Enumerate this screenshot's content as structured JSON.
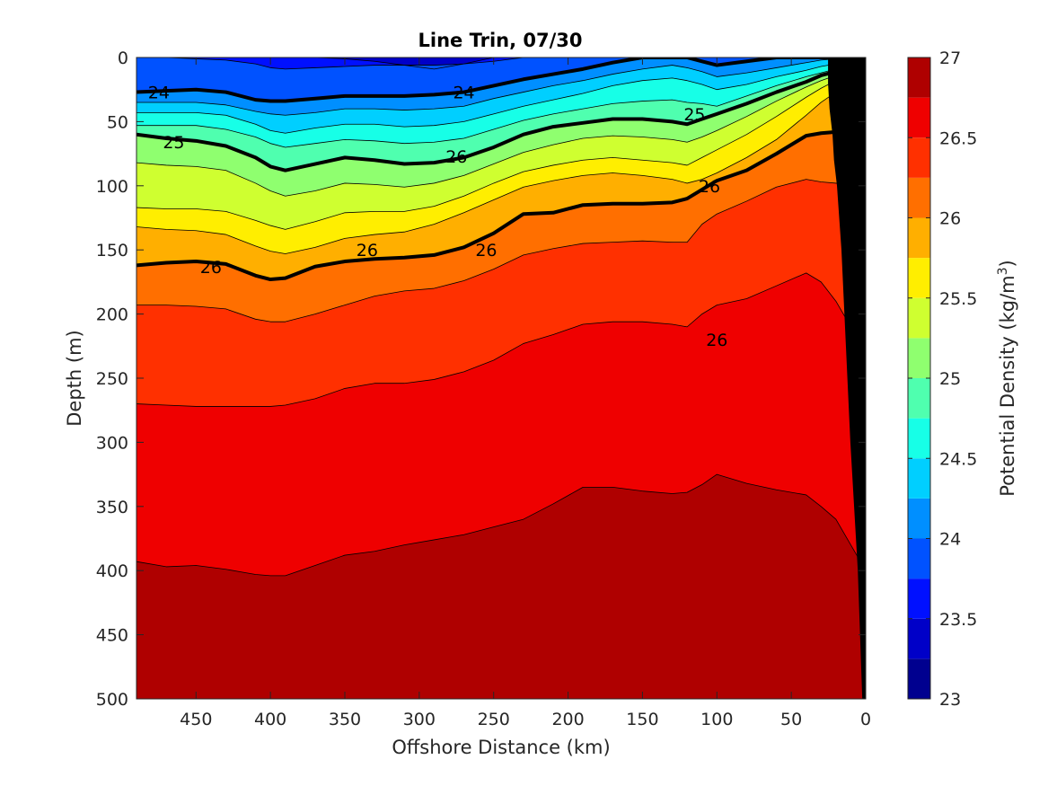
{
  "chart_data": {
    "type": "contourf",
    "title": "Line Trin, 07/30",
    "xlabel": "Offshore Distance (km)",
    "ylabel": "Depth (m)",
    "colorbar_label": "Potential Density (kg/m",
    "colorbar_label_superscript": "3",
    "colorbar_label_close": ")",
    "xlim": [
      490,
      0
    ],
    "ylim": [
      0,
      500
    ],
    "x_reversed": true,
    "y_reversed": true,
    "x_ticks": [
      "450",
      "400",
      "350",
      "300",
      "250",
      "200",
      "150",
      "100",
      "50",
      "0"
    ],
    "y_ticks": [
      "0",
      "50",
      "100",
      "150",
      "200",
      "250",
      "300",
      "350",
      "400",
      "450",
      "500"
    ],
    "colorbar_range": [
      23,
      27
    ],
    "colorbar_ticks": [
      "23",
      "23.5",
      "24",
      "24.5",
      "25",
      "25.5",
      "26",
      "26.5",
      "27"
    ],
    "levels": [
      23,
      23.25,
      23.5,
      23.75,
      24,
      24.25,
      24.5,
      24.75,
      25,
      25.25,
      25.5,
      25.75,
      26,
      26.25,
      26.5,
      26.75,
      27
    ],
    "colors": [
      "#00008f",
      "#0000c8",
      "#0010ff",
      "#0052ff",
      "#008fff",
      "#00cfff",
      "#17ffe7",
      "#4fffaf",
      "#8fff6f",
      "#cfff30",
      "#ffee00",
      "#ffaf00",
      "#ff6f00",
      "#ff3000",
      "#ef0000",
      "#af0000"
    ],
    "highlight_contours": [
      "24",
      "25",
      "26"
    ],
    "x": [
      490,
      470,
      450,
      430,
      410,
      400,
      390,
      370,
      350,
      330,
      310,
      290,
      270,
      250,
      230,
      210,
      190,
      170,
      150,
      130,
      120,
      110,
      100,
      80,
      60,
      40,
      30,
      20,
      10,
      0
    ],
    "isopycnal_depths": {
      "23.5": [
        -15,
        -13,
        -12,
        -10,
        -6,
        -3,
        -1,
        0,
        1,
        3,
        6,
        9,
        5,
        -1,
        -6,
        -11,
        -15,
        -18,
        -20,
        -22,
        -22,
        -20,
        -18,
        -19,
        -21,
        -24,
        -25,
        -26,
        -26,
        -26
      ],
      "23.75": [
        0,
        0,
        1,
        2,
        5,
        8,
        9,
        8,
        7,
        6,
        6,
        6,
        5,
        3,
        0,
        -3,
        -6,
        -9,
        -11,
        -13,
        -12,
        -10,
        -9,
        -10,
        -12,
        -14,
        -15,
        -16,
        -16,
        -16
      ],
      "24": [
        27,
        26,
        25,
        27,
        33,
        34,
        34,
        32,
        30,
        30,
        30,
        29,
        27,
        22,
        17,
        13,
        9,
        4,
        0,
        -2,
        0,
        3,
        6,
        3,
        0,
        -2,
        -3,
        -4,
        -4,
        -4
      ],
      "24.25": [
        35,
        35,
        35,
        37,
        42,
        44,
        45,
        43,
        40,
        40,
        41,
        40,
        38,
        32,
        27,
        22,
        18,
        13,
        9,
        6,
        8,
        11,
        15,
        12,
        8,
        4,
        2,
        1,
        0,
        0
      ],
      "24.5": [
        43,
        43,
        43,
        45,
        52,
        57,
        59,
        55,
        52,
        52,
        54,
        53,
        50,
        44,
        38,
        33,
        28,
        22,
        18,
        16,
        18,
        21,
        25,
        21,
        15,
        10,
        7,
        5,
        3,
        1
      ],
      "24.75": [
        53,
        53,
        53,
        56,
        62,
        67,
        70,
        67,
        64,
        65,
        67,
        66,
        63,
        56,
        49,
        44,
        40,
        36,
        34,
        33,
        35,
        36,
        38,
        30,
        22,
        15,
        12,
        9,
        6,
        3
      ],
      "25": [
        60,
        63,
        65,
        69,
        78,
        85,
        88,
        83,
        78,
        80,
        83,
        82,
        78,
        70,
        60,
        54,
        51,
        48,
        48,
        50,
        52,
        48,
        44,
        36,
        27,
        19,
        14,
        11,
        8,
        6
      ],
      "25.25": [
        82,
        84,
        85,
        88,
        98,
        104,
        108,
        104,
        98,
        99,
        101,
        98,
        92,
        83,
        74,
        68,
        63,
        61,
        62,
        64,
        66,
        62,
        57,
        46,
        34,
        23,
        18,
        14,
        11,
        8
      ],
      "25.5": [
        117,
        118,
        118,
        120,
        127,
        131,
        134,
        128,
        121,
        120,
        120,
        116,
        108,
        98,
        89,
        84,
        80,
        78,
        80,
        82,
        84,
        78,
        72,
        60,
        46,
        31,
        24,
        18,
        14,
        10
      ],
      "25.75": [
        132,
        134,
        135,
        138,
        147,
        151,
        153,
        148,
        141,
        138,
        136,
        130,
        121,
        111,
        101,
        96,
        92,
        90,
        92,
        95,
        98,
        95,
        90,
        78,
        64,
        45,
        35,
        27,
        20,
        15
      ],
      "26": [
        162,
        160,
        159,
        161,
        170,
        173,
        172,
        163,
        159,
        157,
        156,
        154,
        148,
        137,
        122,
        121,
        115,
        114,
        114,
        113,
        110,
        103,
        96,
        88,
        75,
        61,
        59,
        58,
        58,
        58
      ],
      "26.25": [
        193,
        193,
        194,
        196,
        204,
        206,
        206,
        200,
        193,
        186,
        182,
        180,
        174,
        165,
        154,
        149,
        145,
        144,
        143,
        144,
        144,
        130,
        122,
        112,
        101,
        95,
        97,
        98,
        99,
        99
      ],
      "26.5": [
        270,
        271,
        272,
        272,
        272,
        272,
        271,
        266,
        258,
        254,
        254,
        251,
        245,
        236,
        223,
        216,
        208,
        206,
        206,
        208,
        210,
        200,
        193,
        188,
        178,
        168,
        175,
        190,
        210,
        230
      ],
      "26.75": [
        393,
        397,
        396,
        399,
        403,
        404,
        404,
        396,
        388,
        385,
        380,
        376,
        372,
        366,
        360,
        348,
        335,
        335,
        338,
        340,
        339,
        333,
        325,
        332,
        337,
        341,
        350,
        360,
        380,
        400
      ]
    },
    "bathymetry": {
      "x": [
        0,
        0,
        2,
        5,
        10,
        14,
        16,
        19,
        21,
        22,
        24,
        25,
        25
      ],
      "depth": [
        0,
        500,
        500,
        400,
        300,
        200,
        150,
        100,
        80,
        60,
        40,
        20,
        0
      ]
    },
    "contour_labels": [
      {
        "text": "24",
        "x": 475,
        "y": 27
      },
      {
        "text": "24",
        "x": 270,
        "y": 27
      },
      {
        "text": "25",
        "x": 115,
        "y": 44
      },
      {
        "text": "25",
        "x": 465,
        "y": 66
      },
      {
        "text": "26",
        "x": 275,
        "y": 77
      },
      {
        "text": "26",
        "x": 440,
        "y": 163
      },
      {
        "text": "26",
        "x": 255,
        "y": 150
      },
      {
        "text": "26",
        "x": 335,
        "y": 150
      },
      {
        "text": "26",
        "x": 105,
        "y": 100
      },
      {
        "text": "26",
        "x": 100,
        "y": 220
      }
    ]
  }
}
